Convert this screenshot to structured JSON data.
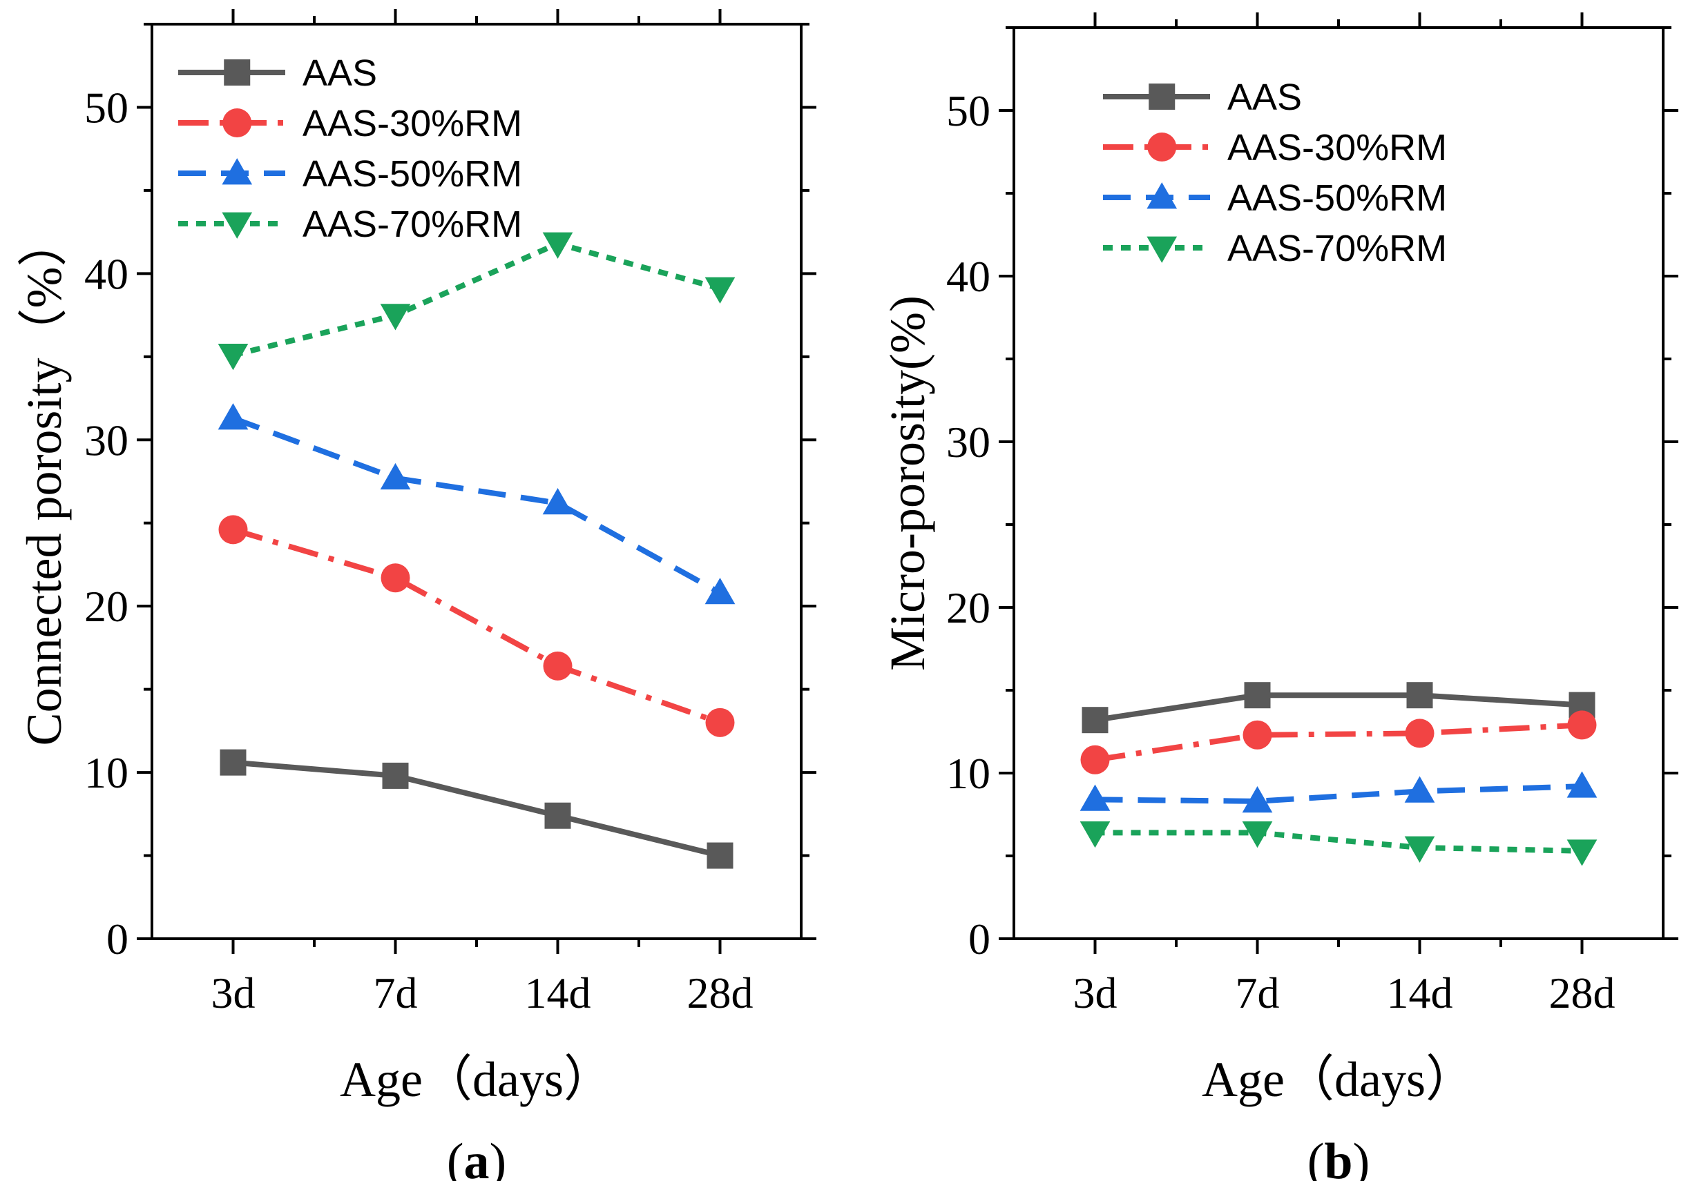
{
  "chart_data": [
    {
      "type": "line",
      "panel_label": "(a)",
      "panel_letter": "a",
      "xlabel": "Age（days）",
      "ylabel": "Connected porosity（%）",
      "categories": [
        "3d",
        "7d",
        "14d",
        "28d"
      ],
      "ylim": [
        0,
        55
      ],
      "yticks": [
        0,
        10,
        20,
        30,
        40,
        50
      ],
      "legend_position": "top-left",
      "series": [
        {
          "name": "AAS",
          "color": "#595959",
          "marker": "square",
          "dash": "solid",
          "values": [
            10.6,
            9.8,
            7.4,
            5.0
          ]
        },
        {
          "name": "AAS-30%RM",
          "color": "#f24444",
          "marker": "circle",
          "dash": "dashdot",
          "values": [
            24.6,
            21.7,
            16.4,
            13.0
          ]
        },
        {
          "name": "AAS-50%RM",
          "color": "#1f6fe0",
          "marker": "triangle-up",
          "dash": "dash",
          "values": [
            31.3,
            27.7,
            26.2,
            20.8
          ]
        },
        {
          "name": "AAS-70%RM",
          "color": "#1aa35a",
          "marker": "triangle-down",
          "dash": "dot",
          "values": [
            35.1,
            37.5,
            41.8,
            39.1
          ]
        }
      ]
    },
    {
      "type": "line",
      "panel_label": "(b)",
      "panel_letter": "b",
      "xlabel": "Age（days）",
      "ylabel": "Micro-porosity(%)",
      "categories": [
        "3d",
        "7d",
        "14d",
        "28d"
      ],
      "ylim": [
        0,
        55
      ],
      "yticks": [
        0,
        10,
        20,
        30,
        40,
        50
      ],
      "legend_position": "top-left",
      "series": [
        {
          "name": "AAS",
          "color": "#595959",
          "marker": "square",
          "dash": "solid",
          "values": [
            13.2,
            14.7,
            14.7,
            14.1
          ]
        },
        {
          "name": "AAS-30%RM",
          "color": "#f24444",
          "marker": "circle",
          "dash": "dashdot",
          "values": [
            10.8,
            12.3,
            12.4,
            12.9
          ]
        },
        {
          "name": "AAS-50%RM",
          "color": "#1f6fe0",
          "marker": "triangle-up",
          "dash": "dash",
          "values": [
            8.4,
            8.3,
            8.9,
            9.2
          ]
        },
        {
          "name": "AAS-70%RM",
          "color": "#1aa35a",
          "marker": "triangle-down",
          "dash": "dot",
          "values": [
            6.4,
            6.4,
            5.5,
            5.3
          ]
        }
      ]
    }
  ]
}
